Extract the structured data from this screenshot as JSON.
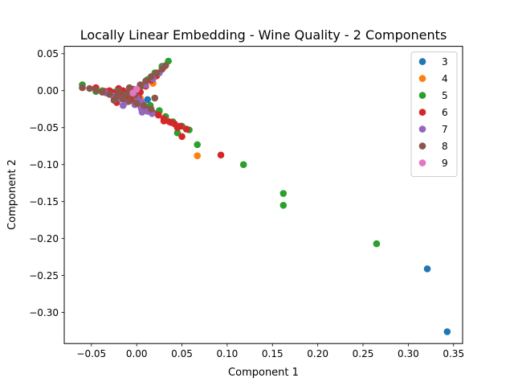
{
  "chart_data": {
    "type": "scatter",
    "title": "Locally Linear Embedding - Wine Quality - 2 Components",
    "xlabel": "Component 1",
    "ylabel": "Component 2",
    "xlim": [
      -0.08,
      0.36
    ],
    "ylim": [
      -0.342,
      0.06
    ],
    "xticks": [
      -0.05,
      0.0,
      0.05,
      0.1,
      0.15,
      0.2,
      0.25,
      0.3,
      0.35
    ],
    "xtick_labels": [
      "−0.05",
      "0.00",
      "0.05",
      "0.10",
      "0.15",
      "0.20",
      "0.25",
      "0.30",
      "0.35"
    ],
    "yticks": [
      0.05,
      0.0,
      -0.05,
      -0.1,
      -0.15,
      -0.2,
      -0.25,
      -0.3
    ],
    "ytick_labels": [
      "0.05",
      "0.00",
      "−0.05",
      "−0.10",
      "−0.15",
      "−0.20",
      "−0.25",
      "−0.30"
    ],
    "grid": false,
    "legend_position": "top-right",
    "series": [
      {
        "name": "3",
        "color": "#1f77b4",
        "points": [
          [
            0.321,
            -0.241
          ],
          [
            0.343,
            -0.326
          ],
          [
            0.012,
            -0.012
          ],
          [
            -0.005,
            -0.006
          ]
        ]
      },
      {
        "name": "4",
        "color": "#ff7f0e",
        "points": [
          [
            0.067,
            -0.088
          ],
          [
            0.004,
            -0.01
          ],
          [
            -0.012,
            -0.004
          ],
          [
            0.018,
            0.01
          ],
          [
            0.025,
            -0.028
          ],
          [
            0.045,
            -0.049
          ]
        ]
      },
      {
        "name": "5",
        "color": "#2ca02c",
        "points": [
          [
            0.265,
            -0.207
          ],
          [
            0.162,
            -0.139
          ],
          [
            0.162,
            -0.155
          ],
          [
            0.118,
            -0.1
          ],
          [
            0.067,
            -0.073
          ],
          [
            0.058,
            -0.053
          ],
          [
            0.045,
            -0.057
          ],
          [
            -0.06,
            0.008
          ],
          [
            -0.045,
            -0.001
          ],
          [
            -0.038,
            0.0
          ],
          [
            -0.025,
            -0.002
          ],
          [
            -0.015,
            -0.008
          ],
          [
            -0.005,
            -0.012
          ],
          [
            0.005,
            -0.018
          ],
          [
            0.015,
            -0.02
          ],
          [
            0.025,
            -0.027
          ],
          [
            0.035,
            0.04
          ],
          [
            0.028,
            0.033
          ],
          [
            0.02,
            0.024
          ],
          [
            0.012,
            0.015
          ],
          [
            0.005,
            0.006
          ],
          [
            -0.01,
            -0.004
          ],
          [
            0.032,
            -0.035
          ],
          [
            0.04,
            -0.042
          ],
          [
            0.05,
            -0.048
          ]
        ]
      },
      {
        "name": "6",
        "color": "#d62728",
        "points": [
          [
            0.093,
            -0.087
          ],
          [
            0.05,
            -0.062
          ],
          [
            0.055,
            -0.052
          ],
          [
            0.048,
            -0.048
          ],
          [
            0.042,
            -0.045
          ],
          [
            0.036,
            -0.042
          ],
          [
            0.03,
            -0.038
          ],
          [
            0.024,
            -0.033
          ],
          [
            0.018,
            -0.03
          ],
          [
            0.012,
            -0.026
          ],
          [
            0.006,
            -0.022
          ],
          [
            0.0,
            -0.018
          ],
          [
            -0.006,
            -0.013
          ],
          [
            -0.012,
            -0.01
          ],
          [
            -0.018,
            -0.006
          ],
          [
            -0.024,
            -0.003
          ],
          [
            -0.03,
            0.0
          ],
          [
            -0.02,
            0.003
          ],
          [
            -0.015,
            0.0
          ],
          [
            -0.008,
            -0.004
          ],
          [
            -0.002,
            -0.008
          ],
          [
            0.004,
            -0.002
          ],
          [
            0.01,
            0.006
          ],
          [
            0.016,
            0.014
          ],
          [
            0.022,
            0.02
          ],
          [
            -0.022,
            -0.016
          ],
          [
            -0.012,
            -0.014
          ],
          [
            -0.004,
            0.001
          ],
          [
            0.002,
            -0.01
          ],
          [
            -0.045,
            0.004
          ],
          [
            -0.035,
            -0.001
          ],
          [
            0.03,
            -0.041
          ],
          [
            0.038,
            -0.043
          ],
          [
            0.045,
            -0.05
          ]
        ]
      },
      {
        "name": "7",
        "color": "#9467bd",
        "points": [
          [
            0.017,
            -0.031
          ],
          [
            0.012,
            -0.028
          ],
          [
            0.005,
            -0.024
          ],
          [
            -0.002,
            -0.019
          ],
          [
            -0.01,
            -0.015
          ],
          [
            -0.018,
            -0.011
          ],
          [
            -0.026,
            -0.007
          ],
          [
            -0.034,
            -0.003
          ],
          [
            0.005,
            -0.015
          ],
          [
            0.0,
            -0.009
          ],
          [
            -0.008,
            -0.003
          ],
          [
            0.01,
            0.008
          ],
          [
            0.018,
            0.016
          ],
          [
            0.025,
            0.024
          ],
          [
            0.03,
            0.032
          ],
          [
            -0.015,
            -0.02
          ],
          [
            0.006,
            -0.029
          ]
        ]
      },
      {
        "name": "8",
        "color": "#8c564b",
        "points": [
          [
            -0.06,
            0.004
          ],
          [
            -0.052,
            0.003
          ],
          [
            -0.045,
            0.001
          ],
          [
            -0.038,
            -0.002
          ],
          [
            -0.03,
            -0.005
          ],
          [
            -0.022,
            -0.008
          ],
          [
            -0.015,
            -0.011
          ],
          [
            -0.008,
            -0.014
          ],
          [
            0.0,
            -0.017
          ],
          [
            0.008,
            -0.02
          ],
          [
            0.016,
            -0.025
          ],
          [
            -0.01,
            -0.003
          ],
          [
            -0.004,
            0.002
          ],
          [
            0.004,
            0.008
          ],
          [
            0.01,
            0.013
          ],
          [
            0.016,
            0.019
          ],
          [
            0.022,
            0.024
          ],
          [
            0.028,
            0.029
          ],
          [
            0.032,
            0.034
          ],
          [
            -0.02,
            0.0
          ],
          [
            -0.014,
            -0.006
          ],
          [
            -0.002,
            -0.006
          ],
          [
            -0.025,
            -0.013
          ],
          [
            -0.008,
            0.004
          ],
          [
            0.02,
            -0.01
          ]
        ]
      },
      {
        "name": "9",
        "color": "#e377c2",
        "points": [
          [
            0.0,
            0.002
          ],
          [
            -0.004,
            -0.003
          ]
        ]
      }
    ]
  }
}
